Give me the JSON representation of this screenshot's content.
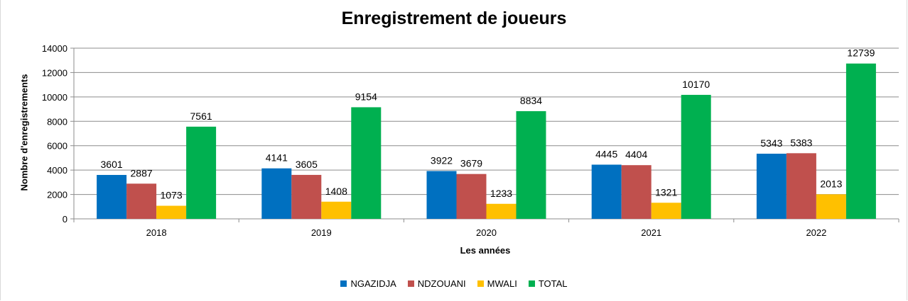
{
  "chart_data": {
    "type": "bar",
    "title": "Enregistrement de joueurs",
    "xlabel": "Les années",
    "ylabel": "Nombre d'enregistrements",
    "ylim": [
      0,
      14000
    ],
    "yticks": [
      0,
      2000,
      4000,
      6000,
      8000,
      10000,
      12000,
      14000
    ],
    "grid": true,
    "legend": "bottom",
    "categories": [
      "2018",
      "2019",
      "2020",
      "2021",
      "2022"
    ],
    "series": [
      {
        "name": "NGAZIDJA",
        "color": "#0070c0",
        "values": [
          3601,
          4141,
          3922,
          4445,
          5343
        ]
      },
      {
        "name": "NDZOUANI",
        "color": "#c0504d",
        "values": [
          2887,
          3605,
          3679,
          4404,
          5383
        ]
      },
      {
        "name": "MWALI",
        "color": "#ffc000",
        "values": [
          1073,
          1408,
          1233,
          1321,
          2013
        ]
      },
      {
        "name": "TOTAL",
        "color": "#00b050",
        "values": [
          7561,
          9154,
          8834,
          10170,
          12739
        ]
      }
    ]
  }
}
